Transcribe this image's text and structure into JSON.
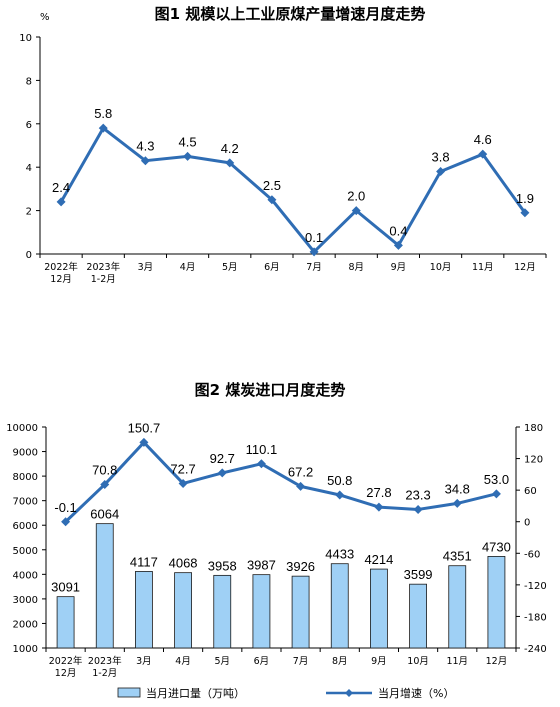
{
  "chart_data": [
    {
      "type": "line",
      "title": "图1  规模以上工业原煤产量增速月度走势",
      "ylabel": "%",
      "ylim": [
        0,
        10
      ],
      "yticks": [
        0,
        2,
        4,
        6,
        8,
        10
      ],
      "categories": [
        "2022年|12月",
        "2023年|1-2月",
        "3月",
        "4月",
        "5月",
        "6月",
        "7月",
        "8月",
        "9月",
        "10月",
        "11月",
        "12月"
      ],
      "series": [
        {
          "values": [
            2.4,
            5.8,
            4.3,
            4.5,
            4.2,
            2.5,
            0.1,
            2.0,
            0.4,
            3.8,
            4.6,
            1.9
          ]
        }
      ],
      "labels": [
        "2.4",
        "5.8",
        "4.3",
        "4.5",
        "4.2",
        "2.5",
        "0.1",
        "2.0",
        "0.4",
        "3.8",
        "4.6",
        "1.9"
      ],
      "color": "#2f6db4",
      "grid": false
    },
    {
      "type": "bar+line",
      "title": "图2  煤炭进口月度走势",
      "categories": [
        "2022年|12月",
        "2023年|1-2月",
        "3月",
        "4月",
        "5月",
        "6月",
        "7月",
        "8月",
        "9月",
        "10月",
        "11月",
        "12月"
      ],
      "y_left_lim": [
        1000,
        10000
      ],
      "y_left_ticks": [
        1000,
        2000,
        3000,
        4000,
        5000,
        6000,
        7000,
        8000,
        9000,
        10000
      ],
      "y_right_lim": [
        -240,
        180
      ],
      "y_right_ticks": [
        -240,
        -180,
        -120,
        -60,
        0,
        60,
        120,
        180
      ],
      "series": [
        {
          "name": "当月进口量（万吨）",
          "type": "bar",
          "axis": "left",
          "values": [
            3091,
            6064,
            4117,
            4068,
            3958,
            3987,
            3926,
            4433,
            4214,
            3599,
            4351,
            4730
          ],
          "labels": [
            "3091",
            "6064",
            "4117",
            "4068",
            "3958",
            "3987",
            "3926",
            "4433",
            "4214",
            "3599",
            "4351",
            "4730"
          ],
          "color": "#9fd0f5"
        },
        {
          "name": "当月增速（%）",
          "type": "line",
          "axis": "right",
          "values": [
            -0.1,
            70.8,
            150.7,
            72.7,
            92.7,
            110.1,
            67.2,
            50.8,
            27.8,
            23.3,
            34.8,
            53.0
          ],
          "labels": [
            "-0.1",
            "70.8",
            "150.7",
            "72.7",
            "92.7",
            "110.1",
            "67.2",
            "50.8",
            "27.8",
            "23.3",
            "34.8",
            "53.0"
          ],
          "color": "#2f6db4"
        }
      ],
      "legend": "bottom",
      "grid": false
    }
  ]
}
